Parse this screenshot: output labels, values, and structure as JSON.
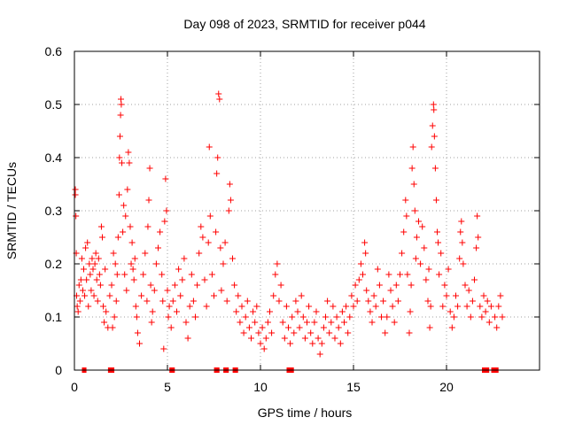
{
  "chart_data": {
    "type": "scatter",
    "title": "Day 098 of 2023, SRMTID for receiver p044",
    "xlabel": "GPS time / hours",
    "ylabel": "SRMTID / TECUs",
    "xlim": [
      0,
      25
    ],
    "ylim": [
      0,
      0.6
    ],
    "xticks": [
      0,
      5,
      10,
      15,
      20
    ],
    "yticks": [
      0,
      0.1,
      0.2,
      0.3,
      0.4,
      0.5,
      0.6
    ],
    "xtick_labels": [
      "0",
      "5",
      "10",
      "15",
      "20"
    ],
    "ytick_labels": [
      "0",
      "0.1",
      "0.2",
      "0.3",
      "0.4",
      "0.5",
      "0.6"
    ],
    "grid": true,
    "marker": "plus",
    "color": "#ff0000",
    "series": [
      {
        "name": "SRMTID",
        "points": [
          [
            0.05,
            0.34
          ],
          [
            0.05,
            0.33
          ],
          [
            0.08,
            0.29
          ],
          [
            0.1,
            0.22
          ],
          [
            0.12,
            0.14
          ],
          [
            0.15,
            0.12
          ],
          [
            0.2,
            0.11
          ],
          [
            0.25,
            0.16
          ],
          [
            0.3,
            0.13
          ],
          [
            0.35,
            0.17
          ],
          [
            0.4,
            0.21
          ],
          [
            0.45,
            0.15
          ],
          [
            0.5,
            0.19
          ],
          [
            0.55,
            0.14
          ],
          [
            0.6,
            0.23
          ],
          [
            0.65,
            0.17
          ],
          [
            0.7,
            0.24
          ],
          [
            0.75,
            0.12
          ],
          [
            0.8,
            0.2
          ],
          [
            0.85,
            0.18
          ],
          [
            0.9,
            0.15
          ],
          [
            0.95,
            0.21
          ],
          [
            1.0,
            0.19
          ],
          [
            1.05,
            0.14
          ],
          [
            1.1,
            0.2
          ],
          [
            1.15,
            0.22
          ],
          [
            1.2,
            0.17
          ],
          [
            1.25,
            0.13
          ],
          [
            1.3,
            0.21
          ],
          [
            1.35,
            0.18
          ],
          [
            1.4,
            0.16
          ],
          [
            1.45,
            0.27
          ],
          [
            1.5,
            0.25
          ],
          [
            1.55,
            0.12
          ],
          [
            1.6,
            0.09
          ],
          [
            1.65,
            0.19
          ],
          [
            1.7,
            0.11
          ],
          [
            1.8,
            0.08
          ],
          [
            1.9,
            0.14
          ],
          [
            2.0,
            0.16
          ],
          [
            2.05,
            0.08
          ],
          [
            2.1,
            0.22
          ],
          [
            2.15,
            0.1
          ],
          [
            2.2,
            0.2
          ],
          [
            2.25,
            0.13
          ],
          [
            2.3,
            0.18
          ],
          [
            2.35,
            0.25
          ],
          [
            2.4,
            0.33
          ],
          [
            2.42,
            0.4
          ],
          [
            2.45,
            0.44
          ],
          [
            2.48,
            0.48
          ],
          [
            2.5,
            0.51
          ],
          [
            2.52,
            0.5
          ],
          [
            2.55,
            0.39
          ],
          [
            2.6,
            0.26
          ],
          [
            2.65,
            0.31
          ],
          [
            2.7,
            0.18
          ],
          [
            2.75,
            0.29
          ],
          [
            2.8,
            0.15
          ],
          [
            2.85,
            0.34
          ],
          [
            2.9,
            0.41
          ],
          [
            2.95,
            0.39
          ],
          [
            3.0,
            0.27
          ],
          [
            3.05,
            0.2
          ],
          [
            3.1,
            0.24
          ],
          [
            3.15,
            0.19
          ],
          [
            3.2,
            0.17
          ],
          [
            3.25,
            0.21
          ],
          [
            3.3,
            0.12
          ],
          [
            3.35,
            0.1
          ],
          [
            3.4,
            0.07
          ],
          [
            3.5,
            0.05
          ],
          [
            3.6,
            0.14
          ],
          [
            3.7,
            0.18
          ],
          [
            3.8,
            0.22
          ],
          [
            3.9,
            0.13
          ],
          [
            3.95,
            0.27
          ],
          [
            4.0,
            0.32
          ],
          [
            4.05,
            0.38
          ],
          [
            4.1,
            0.16
          ],
          [
            4.15,
            0.09
          ],
          [
            4.2,
            0.11
          ],
          [
            4.3,
            0.15
          ],
          [
            4.4,
            0.2
          ],
          [
            4.5,
            0.23
          ],
          [
            4.6,
            0.26
          ],
          [
            4.7,
            0.18
          ],
          [
            4.75,
            0.13
          ],
          [
            4.8,
            0.04
          ],
          [
            4.85,
            0.28
          ],
          [
            4.9,
            0.36
          ],
          [
            4.95,
            0.3
          ],
          [
            5.0,
            0.15
          ],
          [
            5.05,
            0.1
          ],
          [
            5.1,
            0.12
          ],
          [
            5.2,
            0.08
          ],
          [
            5.3,
            0.13
          ],
          [
            5.4,
            0.16
          ],
          [
            5.5,
            0.11
          ],
          [
            5.6,
            0.19
          ],
          [
            5.7,
            0.14
          ],
          [
            5.8,
            0.17
          ],
          [
            5.9,
            0.21
          ],
          [
            6.0,
            0.09
          ],
          [
            6.1,
            0.06
          ],
          [
            6.2,
            0.12
          ],
          [
            6.3,
            0.18
          ],
          [
            6.4,
            0.13
          ],
          [
            6.5,
            0.1
          ],
          [
            6.6,
            0.16
          ],
          [
            6.7,
            0.22
          ],
          [
            6.8,
            0.27
          ],
          [
            6.9,
            0.25
          ],
          [
            7.0,
            0.17
          ],
          [
            7.1,
            0.12
          ],
          [
            7.2,
            0.24
          ],
          [
            7.25,
            0.42
          ],
          [
            7.3,
            0.29
          ],
          [
            7.4,
            0.18
          ],
          [
            7.5,
            0.14
          ],
          [
            7.6,
            0.26
          ],
          [
            7.65,
            0.37
          ],
          [
            7.7,
            0.4
          ],
          [
            7.75,
            0.52
          ],
          [
            7.8,
            0.51
          ],
          [
            7.85,
            0.23
          ],
          [
            7.9,
            0.15
          ],
          [
            8.0,
            0.2
          ],
          [
            8.1,
            0.24
          ],
          [
            8.2,
            0.13
          ],
          [
            8.3,
            0.3
          ],
          [
            8.35,
            0.35
          ],
          [
            8.4,
            0.32
          ],
          [
            8.5,
            0.21
          ],
          [
            8.6,
            0.16
          ],
          [
            8.7,
            0.11
          ],
          [
            8.8,
            0.14
          ],
          [
            8.9,
            0.09
          ],
          [
            9.0,
            0.12
          ],
          [
            9.1,
            0.07
          ],
          [
            9.2,
            0.1
          ],
          [
            9.3,
            0.13
          ],
          [
            9.4,
            0.08
          ],
          [
            9.5,
            0.06
          ],
          [
            9.6,
            0.11
          ],
          [
            9.7,
            0.09
          ],
          [
            9.8,
            0.12
          ],
          [
            9.9,
            0.07
          ],
          [
            10.0,
            0.05
          ],
          [
            10.1,
            0.08
          ],
          [
            10.2,
            0.04
          ],
          [
            10.3,
            0.06
          ],
          [
            10.4,
            0.09
          ],
          [
            10.5,
            0.11
          ],
          [
            10.6,
            0.07
          ],
          [
            10.7,
            0.14
          ],
          [
            10.8,
            0.18
          ],
          [
            10.9,
            0.2
          ],
          [
            11.0,
            0.13
          ],
          [
            11.1,
            0.16
          ],
          [
            11.2,
            0.09
          ],
          [
            11.3,
            0.06
          ],
          [
            11.4,
            0.12
          ],
          [
            11.5,
            0.08
          ],
          [
            11.6,
            0.05
          ],
          [
            11.7,
            0.1
          ],
          [
            11.8,
            0.07
          ],
          [
            11.9,
            0.13
          ],
          [
            12.0,
            0.11
          ],
          [
            12.1,
            0.08
          ],
          [
            12.2,
            0.14
          ],
          [
            12.3,
            0.1
          ],
          [
            12.4,
            0.06
          ],
          [
            12.5,
            0.09
          ],
          [
            12.6,
            0.12
          ],
          [
            12.7,
            0.07
          ],
          [
            12.8,
            0.05
          ],
          [
            12.9,
            0.09
          ],
          [
            13.0,
            0.11
          ],
          [
            13.1,
            0.06
          ],
          [
            13.2,
            0.03
          ],
          [
            13.3,
            0.05
          ],
          [
            13.4,
            0.08
          ],
          [
            13.5,
            0.1
          ],
          [
            13.6,
            0.13
          ],
          [
            13.7,
            0.07
          ],
          [
            13.8,
            0.09
          ],
          [
            13.9,
            0.12
          ],
          [
            14.0,
            0.06
          ],
          [
            14.1,
            0.1
          ],
          [
            14.2,
            0.08
          ],
          [
            14.3,
            0.05
          ],
          [
            14.4,
            0.11
          ],
          [
            14.5,
            0.09
          ],
          [
            14.6,
            0.12
          ],
          [
            14.7,
            0.07
          ],
          [
            14.8,
            0.1
          ],
          [
            14.9,
            0.14
          ],
          [
            15.0,
            0.12
          ],
          [
            15.1,
            0.16
          ],
          [
            15.2,
            0.13
          ],
          [
            15.3,
            0.17
          ],
          [
            15.4,
            0.2
          ],
          [
            15.5,
            0.18
          ],
          [
            15.6,
            0.24
          ],
          [
            15.65,
            0.22
          ],
          [
            15.7,
            0.15
          ],
          [
            15.8,
            0.13
          ],
          [
            15.9,
            0.11
          ],
          [
            16.0,
            0.09
          ],
          [
            16.1,
            0.14
          ],
          [
            16.2,
            0.12
          ],
          [
            16.3,
            0.19
          ],
          [
            16.4,
            0.16
          ],
          [
            16.5,
            0.1
          ],
          [
            16.6,
            0.13
          ],
          [
            16.7,
            0.07
          ],
          [
            16.8,
            0.1
          ],
          [
            16.9,
            0.18
          ],
          [
            17.0,
            0.15
          ],
          [
            17.1,
            0.12
          ],
          [
            17.2,
            0.09
          ],
          [
            17.3,
            0.16
          ],
          [
            17.4,
            0.13
          ],
          [
            17.5,
            0.18
          ],
          [
            17.6,
            0.22
          ],
          [
            17.7,
            0.26
          ],
          [
            17.8,
            0.32
          ],
          [
            17.85,
            0.29
          ],
          [
            17.9,
            0.18
          ],
          [
            18.0,
            0.07
          ],
          [
            18.05,
            0.11
          ],
          [
            18.1,
            0.16
          ],
          [
            18.15,
            0.38
          ],
          [
            18.2,
            0.42
          ],
          [
            18.25,
            0.35
          ],
          [
            18.3,
            0.3
          ],
          [
            18.35,
            0.21
          ],
          [
            18.4,
            0.25
          ],
          [
            18.5,
            0.28
          ],
          [
            18.6,
            0.2
          ],
          [
            18.7,
            0.27
          ],
          [
            18.8,
            0.23
          ],
          [
            18.9,
            0.17
          ],
          [
            19.0,
            0.13
          ],
          [
            19.05,
            0.19
          ],
          [
            19.1,
            0.08
          ],
          [
            19.15,
            0.12
          ],
          [
            19.2,
            0.42
          ],
          [
            19.25,
            0.46
          ],
          [
            19.3,
            0.5
          ],
          [
            19.32,
            0.49
          ],
          [
            19.35,
            0.44
          ],
          [
            19.4,
            0.38
          ],
          [
            19.45,
            0.32
          ],
          [
            19.5,
            0.26
          ],
          [
            19.55,
            0.24
          ],
          [
            19.6,
            0.18
          ],
          [
            19.7,
            0.22
          ],
          [
            19.8,
            0.12
          ],
          [
            19.9,
            0.16
          ],
          [
            20.0,
            0.14
          ],
          [
            20.1,
            0.19
          ],
          [
            20.2,
            0.11
          ],
          [
            20.3,
            0.08
          ],
          [
            20.4,
            0.1
          ],
          [
            20.5,
            0.14
          ],
          [
            20.6,
            0.12
          ],
          [
            20.7,
            0.21
          ],
          [
            20.75,
            0.26
          ],
          [
            20.8,
            0.28
          ],
          [
            20.85,
            0.24
          ],
          [
            20.9,
            0.2
          ],
          [
            21.0,
            0.16
          ],
          [
            21.1,
            0.12
          ],
          [
            21.2,
            0.15
          ],
          [
            21.3,
            0.1
          ],
          [
            21.4,
            0.13
          ],
          [
            21.5,
            0.17
          ],
          [
            21.6,
            0.23
          ],
          [
            21.65,
            0.29
          ],
          [
            21.7,
            0.25
          ],
          [
            21.8,
            0.12
          ],
          [
            21.9,
            0.1
          ],
          [
            22.0,
            0.14
          ],
          [
            22.1,
            0.11
          ],
          [
            22.2,
            0.13
          ],
          [
            22.3,
            0.09
          ],
          [
            22.4,
            0.12
          ],
          [
            22.6,
            0.1
          ],
          [
            22.7,
            0.08
          ],
          [
            22.8,
            0.12
          ],
          [
            22.9,
            0.14
          ],
          [
            23.0,
            0.1
          ]
        ]
      }
    ],
    "baseline_markers_x": [
      0.5,
      0.55,
      1.9,
      2.0,
      2.05,
      5.2,
      5.3,
      7.6,
      7.7,
      8.1,
      8.2,
      8.6,
      8.7,
      11.5,
      11.6,
      11.7,
      22.0,
      22.1,
      22.2,
      22.5,
      22.6,
      22.7
    ]
  }
}
